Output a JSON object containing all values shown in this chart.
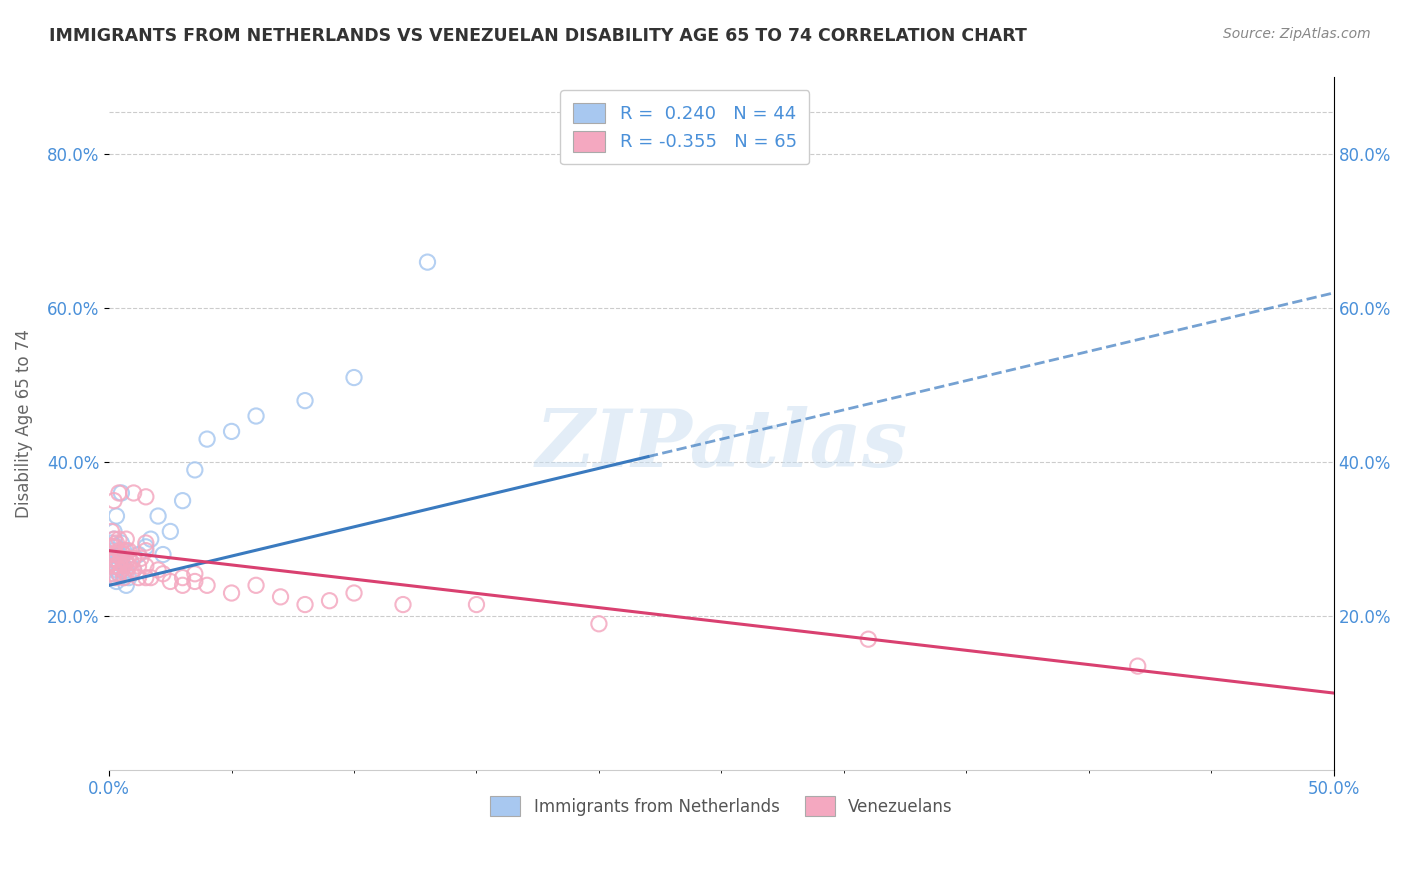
{
  "title": "IMMIGRANTS FROM NETHERLANDS VS VENEZUELAN DISABILITY AGE 65 TO 74 CORRELATION CHART",
  "source": "Source: ZipAtlas.com",
  "ylabel": "Disability Age 65 to 74",
  "xmin": 0.0,
  "xmax": 0.5,
  "ymin": 0.0,
  "ymax": 0.9,
  "ytick_labels": [
    "20.0%",
    "40.0%",
    "60.0%",
    "80.0%"
  ],
  "ytick_positions": [
    0.2,
    0.4,
    0.6,
    0.8
  ],
  "legend_blue_label": "Immigrants from Netherlands",
  "legend_pink_label": "Venezuelans",
  "R_blue": 0.24,
  "N_blue": 44,
  "R_pink": -0.355,
  "N_pink": 65,
  "blue_color": "#a8c8f0",
  "pink_color": "#f4a8c0",
  "blue_line_color": "#3a7abf",
  "pink_line_color": "#d94070",
  "watermark": "ZIPatlas",
  "blue_line_x0": 0.0,
  "blue_line_y0": 0.24,
  "blue_line_x1": 0.5,
  "blue_line_y1": 0.62,
  "blue_line_solid_x0": 0.0,
  "blue_line_solid_x1": 0.22,
  "pink_line_x0": 0.0,
  "pink_line_y0": 0.285,
  "pink_line_x1": 0.5,
  "pink_line_y1": 0.1,
  "blue_scatter": [
    [
      0.001,
      0.255
    ],
    [
      0.001,
      0.27
    ],
    [
      0.001,
      0.28
    ],
    [
      0.001,
      0.295
    ],
    [
      0.002,
      0.25
    ],
    [
      0.002,
      0.265
    ],
    [
      0.002,
      0.275
    ],
    [
      0.002,
      0.285
    ],
    [
      0.002,
      0.3
    ],
    [
      0.002,
      0.31
    ],
    [
      0.003,
      0.245
    ],
    [
      0.003,
      0.26
    ],
    [
      0.003,
      0.27
    ],
    [
      0.003,
      0.29
    ],
    [
      0.003,
      0.33
    ],
    [
      0.004,
      0.255
    ],
    [
      0.004,
      0.27
    ],
    [
      0.004,
      0.28
    ],
    [
      0.005,
      0.26
    ],
    [
      0.005,
      0.275
    ],
    [
      0.005,
      0.295
    ],
    [
      0.005,
      0.36
    ],
    [
      0.006,
      0.25
    ],
    [
      0.006,
      0.265
    ],
    [
      0.006,
      0.285
    ],
    [
      0.007,
      0.24
    ],
    [
      0.007,
      0.26
    ],
    [
      0.008,
      0.25
    ],
    [
      0.009,
      0.27
    ],
    [
      0.01,
      0.26
    ],
    [
      0.012,
      0.28
    ],
    [
      0.015,
      0.29
    ],
    [
      0.017,
      0.3
    ],
    [
      0.02,
      0.33
    ],
    [
      0.022,
      0.28
    ],
    [
      0.025,
      0.31
    ],
    [
      0.03,
      0.35
    ],
    [
      0.035,
      0.39
    ],
    [
      0.04,
      0.43
    ],
    [
      0.05,
      0.44
    ],
    [
      0.06,
      0.46
    ],
    [
      0.08,
      0.48
    ],
    [
      0.1,
      0.51
    ],
    [
      0.13,
      0.66
    ]
  ],
  "pink_scatter": [
    [
      0.001,
      0.27
    ],
    [
      0.001,
      0.28
    ],
    [
      0.001,
      0.29
    ],
    [
      0.001,
      0.31
    ],
    [
      0.002,
      0.255
    ],
    [
      0.002,
      0.265
    ],
    [
      0.002,
      0.275
    ],
    [
      0.002,
      0.29
    ],
    [
      0.002,
      0.3
    ],
    [
      0.002,
      0.35
    ],
    [
      0.003,
      0.25
    ],
    [
      0.003,
      0.265
    ],
    [
      0.003,
      0.28
    ],
    [
      0.003,
      0.295
    ],
    [
      0.004,
      0.255
    ],
    [
      0.004,
      0.27
    ],
    [
      0.004,
      0.285
    ],
    [
      0.004,
      0.3
    ],
    [
      0.004,
      0.36
    ],
    [
      0.005,
      0.26
    ],
    [
      0.005,
      0.275
    ],
    [
      0.005,
      0.285
    ],
    [
      0.006,
      0.25
    ],
    [
      0.006,
      0.265
    ],
    [
      0.006,
      0.28
    ],
    [
      0.007,
      0.255
    ],
    [
      0.007,
      0.27
    ],
    [
      0.007,
      0.285
    ],
    [
      0.007,
      0.3
    ],
    [
      0.008,
      0.265
    ],
    [
      0.008,
      0.275
    ],
    [
      0.008,
      0.285
    ],
    [
      0.009,
      0.255
    ],
    [
      0.009,
      0.27
    ],
    [
      0.01,
      0.26
    ],
    [
      0.01,
      0.275
    ],
    [
      0.01,
      0.36
    ],
    [
      0.012,
      0.25
    ],
    [
      0.012,
      0.265
    ],
    [
      0.013,
      0.275
    ],
    [
      0.015,
      0.25
    ],
    [
      0.015,
      0.265
    ],
    [
      0.015,
      0.285
    ],
    [
      0.015,
      0.295
    ],
    [
      0.015,
      0.355
    ],
    [
      0.017,
      0.25
    ],
    [
      0.02,
      0.26
    ],
    [
      0.022,
      0.255
    ],
    [
      0.025,
      0.245
    ],
    [
      0.03,
      0.25
    ],
    [
      0.03,
      0.24
    ],
    [
      0.035,
      0.245
    ],
    [
      0.035,
      0.255
    ],
    [
      0.04,
      0.24
    ],
    [
      0.05,
      0.23
    ],
    [
      0.06,
      0.24
    ],
    [
      0.07,
      0.225
    ],
    [
      0.08,
      0.215
    ],
    [
      0.09,
      0.22
    ],
    [
      0.1,
      0.23
    ],
    [
      0.12,
      0.215
    ],
    [
      0.15,
      0.215
    ],
    [
      0.2,
      0.19
    ],
    [
      0.31,
      0.17
    ],
    [
      0.42,
      0.135
    ]
  ]
}
